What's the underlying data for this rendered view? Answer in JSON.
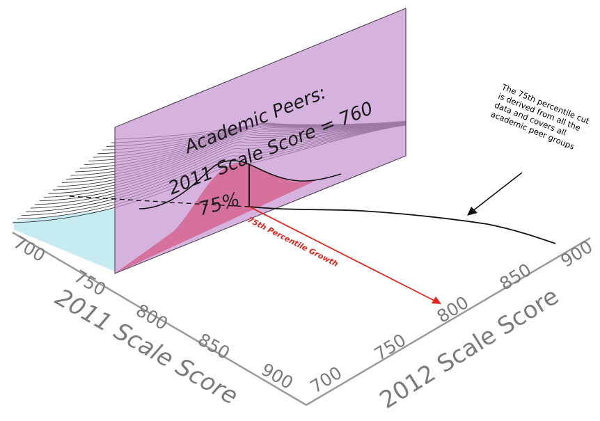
{
  "panel": {
    "title_line1": "Academic Peers:",
    "title_line2": "2011 Scale Score = 760",
    "fill_color": "#c79bd0"
  },
  "percent_label": "75%",
  "growth_label": "75th Percentile Growth",
  "annotation": {
    "lines": [
      "The 75th percentile cut",
      "is derived from all the",
      "data and covers all",
      "academic peer groups"
    ]
  },
  "axes": {
    "x2011": {
      "title": "2011 Scale Score",
      "ticks": [
        "700",
        "750",
        "800",
        "850",
        "900"
      ]
    },
    "y2012": {
      "title": "2012 Scale Score",
      "ticks": [
        "700",
        "750",
        "800",
        "850",
        "900"
      ]
    }
  },
  "colors": {
    "axis": "#9a9a9a",
    "density_fill": "#ff1a1a",
    "growth_arrow": "#e2261c",
    "curve_gradient_start": "#5cc8d8",
    "curve_gradient_end": "#7a6fc0"
  }
}
